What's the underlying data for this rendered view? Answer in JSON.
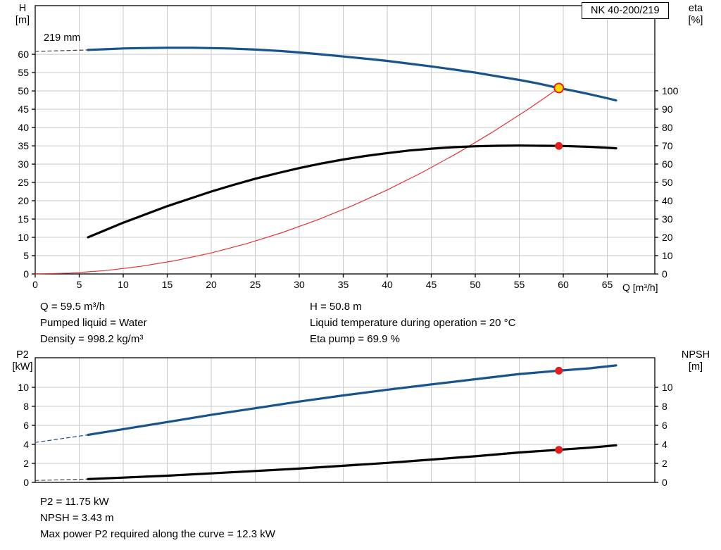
{
  "pump": {
    "model_box": "NK 40-200/219",
    "impeller_diameter": "219 mm"
  },
  "top_chart_labels": {
    "y_left_line1": "H",
    "y_left_line2": "[m]",
    "y_right_line1": "eta",
    "y_right_line2": "[%]",
    "x_title": "Q [m³/h]"
  },
  "bottom_chart_labels": {
    "y_left_line1": "P2",
    "y_left_line2": "[kW]",
    "y_right_line1": "NPSH",
    "y_right_line2": "[m]"
  },
  "operating_point": {
    "q": "Q = 59.5 m³/h",
    "h": "H = 50.8 m",
    "pumped_liquid": "Pumped liquid = Water",
    "liquid_temperature": "Liquid temperature during operation = 20 °C",
    "density": "Density = 998.2 kg/m³",
    "eta_pump": "Eta pump = 69.9 %"
  },
  "power_point": {
    "p2": "P2 = 11.75 kW",
    "npsh": "NPSH = 3.43 m",
    "max_power": "Max power P2 required along the curve = 12.3 kW"
  },
  "chart_data": [
    {
      "type": "line",
      "name": "head-efficiency-chart",
      "title": "NK 40-200/219",
      "x_axis": {
        "label": "Q [m³/h]",
        "range": [
          0,
          70.4
        ],
        "ticks": [
          0,
          5,
          10,
          15,
          20,
          25,
          30,
          35,
          40,
          45,
          50,
          55,
          60,
          65
        ],
        "show_labels": true,
        "grid": true
      },
      "y_left_axis": {
        "label": "H [m]",
        "range": [
          0,
          73.3
        ],
        "ticks": [
          0,
          5,
          10,
          15,
          20,
          25,
          30,
          35,
          40,
          45,
          50,
          55,
          60
        ],
        "grid": true
      },
      "y_right_axis": {
        "label": "eta [%]",
        "range": [
          0,
          146.5
        ],
        "ticks": [
          0,
          10,
          20,
          30,
          40,
          50,
          60,
          70,
          80,
          90,
          100
        ]
      },
      "series": [
        {
          "name": "system-curve",
          "axis": "left",
          "color": "#e03535",
          "width": 1.2,
          "dash": false,
          "points": [
            [
              0,
              0
            ],
            [
              4,
              0.23
            ],
            [
              8,
              0.92
            ],
            [
              12,
              2.07
            ],
            [
              16,
              3.67
            ],
            [
              20,
              5.74
            ],
            [
              24,
              8.26
            ],
            [
              28,
              11.25
            ],
            [
              32,
              14.69
            ],
            [
              36,
              18.6
            ],
            [
              40,
              22.96
            ],
            [
              44,
              27.78
            ],
            [
              48,
              33.06
            ],
            [
              52,
              38.8
            ],
            [
              56,
              45.0
            ],
            [
              59.5,
              50.8
            ]
          ]
        },
        {
          "name": "head-curve-lead-dashed",
          "axis": "left",
          "color": "#444444",
          "width": 1.2,
          "dash": true,
          "points": [
            [
              0,
              60.8
            ],
            [
              6,
              61.2
            ]
          ]
        },
        {
          "name": "head-curve",
          "axis": "left",
          "color": "#17548e",
          "width": 3.2,
          "dash": false,
          "points": [
            [
              6,
              61.2
            ],
            [
              8,
              61.4
            ],
            [
              10,
              61.6
            ],
            [
              12,
              61.7
            ],
            [
              15,
              61.8
            ],
            [
              18,
              61.8
            ],
            [
              20,
              61.7
            ],
            [
              22,
              61.6
            ],
            [
              25,
              61.3
            ],
            [
              28,
              60.9
            ],
            [
              30,
              60.5
            ],
            [
              32,
              60.1
            ],
            [
              35,
              59.4
            ],
            [
              38,
              58.7
            ],
            [
              40,
              58.2
            ],
            [
              42,
              57.6
            ],
            [
              45,
              56.7
            ],
            [
              48,
              55.7
            ],
            [
              50,
              55.0
            ],
            [
              52,
              54.2
            ],
            [
              55,
              53.0
            ],
            [
              57,
              52.1
            ],
            [
              59.5,
              50.8
            ],
            [
              61,
              50.1
            ],
            [
              63,
              49.1
            ],
            [
              65,
              48.0
            ],
            [
              66,
              47.4
            ]
          ]
        },
        {
          "name": "efficiency-curve",
          "axis": "right",
          "color": "#000000",
          "width": 3.2,
          "dash": false,
          "points": [
            [
              6,
              20
            ],
            [
              8,
              24
            ],
            [
              10,
              28
            ],
            [
              12.5,
              32.5
            ],
            [
              15,
              37
            ],
            [
              17.5,
              41
            ],
            [
              20,
              45
            ],
            [
              22.5,
              48.6
            ],
            [
              25,
              52
            ],
            [
              27.5,
              55
            ],
            [
              30,
              57.8
            ],
            [
              32.5,
              60.3
            ],
            [
              35,
              62.5
            ],
            [
              37.5,
              64.4
            ],
            [
              40,
              66
            ],
            [
              42.5,
              67.4
            ],
            [
              45,
              68.4
            ],
            [
              47.5,
              69.2
            ],
            [
              50,
              69.7
            ],
            [
              52.5,
              70
            ],
            [
              55,
              70.1
            ],
            [
              57.5,
              70
            ],
            [
              59.5,
              69.9
            ],
            [
              61,
              69.7
            ],
            [
              63,
              69.4
            ],
            [
              65,
              68.9
            ],
            [
              66,
              68.6
            ]
          ]
        }
      ],
      "markers": [
        {
          "name": "duty-point-marker",
          "axis": "left",
          "x": 59.5,
          "y": 50.8,
          "r": 6.5,
          "fill": "#ffd900",
          "stroke": "#e02020",
          "stroke_width": 2
        },
        {
          "name": "efficiency-point-marker",
          "axis": "right",
          "x": 59.5,
          "y": 69.9,
          "r": 5,
          "fill": "#e02020",
          "stroke": "#e02020",
          "stroke_width": 1
        }
      ]
    },
    {
      "type": "line",
      "name": "power-npsh-chart",
      "title": "",
      "x_axis": {
        "label": "Q [m³/h]",
        "range": [
          0,
          70.4
        ],
        "ticks": [
          0,
          5,
          10,
          15,
          20,
          25,
          30,
          35,
          40,
          45,
          50,
          55,
          60,
          65
        ],
        "show_labels": false,
        "grid": true
      },
      "y_left_axis": {
        "label": "P2 [kW]",
        "range": [
          0,
          13.11
        ],
        "ticks": [
          0,
          2,
          4,
          6,
          8,
          10
        ],
        "grid": true
      },
      "y_right_axis": {
        "label": "NPSH [m]",
        "range": [
          0,
          13.11
        ],
        "ticks": [
          0,
          2,
          4,
          6,
          8,
          10
        ]
      },
      "series": [
        {
          "name": "p2-curve-lead-dashed",
          "axis": "left",
          "color": "#17548e",
          "width": 1.2,
          "dash": true,
          "points": [
            [
              0,
              4.2
            ],
            [
              6,
              5.0
            ]
          ]
        },
        {
          "name": "p2-curve",
          "axis": "left",
          "color": "#17548e",
          "width": 3.2,
          "dash": false,
          "points": [
            [
              6,
              5.0
            ],
            [
              10,
              5.6
            ],
            [
              15,
              6.35
            ],
            [
              20,
              7.1
            ],
            [
              25,
              7.8
            ],
            [
              30,
              8.5
            ],
            [
              35,
              9.15
            ],
            [
              40,
              9.75
            ],
            [
              45,
              10.3
            ],
            [
              50,
              10.85
            ],
            [
              55,
              11.4
            ],
            [
              59.5,
              11.75
            ],
            [
              63,
              12.0
            ],
            [
              66,
              12.3
            ]
          ]
        },
        {
          "name": "npsh-curve-lead-dashed",
          "axis": "right",
          "color": "#444444",
          "width": 1.2,
          "dash": true,
          "points": [
            [
              0,
              0.2
            ],
            [
              6,
              0.35
            ]
          ]
        },
        {
          "name": "npsh-curve",
          "axis": "right",
          "color": "#000000",
          "width": 3.2,
          "dash": false,
          "points": [
            [
              6,
              0.35
            ],
            [
              10,
              0.5
            ],
            [
              15,
              0.7
            ],
            [
              20,
              0.95
            ],
            [
              25,
              1.2
            ],
            [
              30,
              1.45
            ],
            [
              35,
              1.75
            ],
            [
              40,
              2.05
            ],
            [
              45,
              2.4
            ],
            [
              50,
              2.75
            ],
            [
              55,
              3.15
            ],
            [
              59.5,
              3.43
            ],
            [
              63,
              3.65
            ],
            [
              66,
              3.9
            ]
          ]
        }
      ],
      "markers": [
        {
          "name": "p2-point-marker",
          "axis": "left",
          "x": 59.5,
          "y": 11.75,
          "r": 5,
          "fill": "#e02020",
          "stroke": "#e02020",
          "stroke_width": 1
        },
        {
          "name": "npsh-point-marker",
          "axis": "right",
          "x": 59.5,
          "y": 3.43,
          "r": 5,
          "fill": "#e02020",
          "stroke": "#e02020",
          "stroke_width": 1
        }
      ]
    }
  ]
}
